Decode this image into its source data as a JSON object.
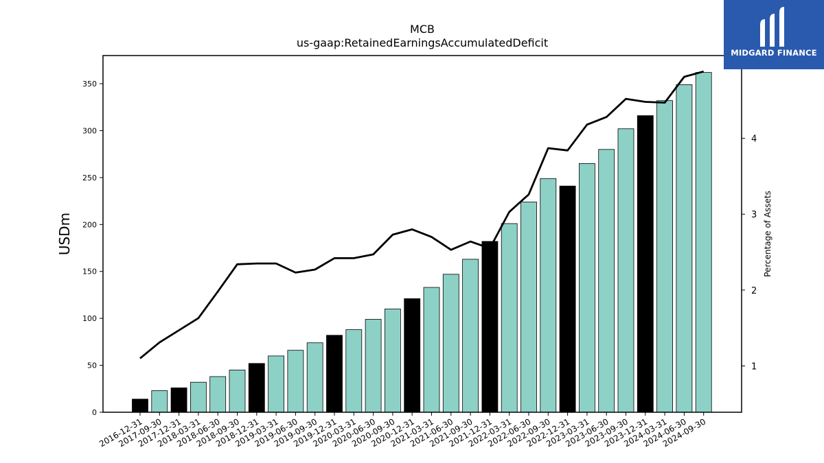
{
  "logo": {
    "text": "MIDGARD FINANCE",
    "icon": "midgard-logo-icon",
    "background": "#2a5aad"
  },
  "chart_data": {
    "type": "bar",
    "title": "MCB",
    "subtitle": "us-gaap:RetainedEarningsAccumulatedDeficit",
    "ylabel": "USDm",
    "ylabel_right": "Percentage of Assets",
    "ylim": [
      0,
      380
    ],
    "ylim_right": [
      0.39,
      5.09
    ],
    "yticks": [
      0,
      50,
      100,
      150,
      200,
      250,
      300,
      350
    ],
    "yticks_right": [
      1,
      2,
      3,
      4
    ],
    "categories": [
      "2016-12-31",
      "2017-09-30",
      "2017-12-31",
      "2018-03-31",
      "2018-06-30",
      "2018-09-30",
      "2018-12-31",
      "2019-03-31",
      "2019-06-30",
      "2019-09-30",
      "2019-12-31",
      "2020-03-31",
      "2020-06-30",
      "2020-09-30",
      "2020-12-31",
      "2021-03-31",
      "2021-06-30",
      "2021-09-30",
      "2021-12-31",
      "2022-03-31",
      "2022-06-30",
      "2022-09-30",
      "2022-12-31",
      "2023-03-31",
      "2023-06-30",
      "2023-09-30",
      "2023-12-31",
      "2024-03-31",
      "2024-06-30",
      "2024-09-30"
    ],
    "values": [
      14,
      23,
      26,
      32,
      38,
      45,
      52,
      60,
      66,
      74,
      82,
      88,
      99,
      110,
      121,
      133,
      147,
      163,
      182,
      201,
      224,
      249,
      241,
      265,
      280,
      302,
      316,
      332,
      349,
      362
    ],
    "year_end_flags": [
      true,
      false,
      true,
      false,
      false,
      false,
      true,
      false,
      false,
      false,
      true,
      false,
      false,
      false,
      true,
      false,
      false,
      false,
      true,
      false,
      false,
      false,
      true,
      false,
      false,
      false,
      true,
      false,
      false,
      false
    ],
    "series": [
      {
        "name": "",
        "axis": "right",
        "type": "line",
        "values": [
          1.1,
          1.31,
          1.47,
          1.63,
          1.98,
          2.34,
          2.35,
          2.35,
          2.23,
          2.27,
          2.42,
          2.42,
          2.47,
          2.73,
          2.8,
          2.7,
          2.53,
          2.64,
          2.55,
          3.03,
          3.26,
          3.87,
          3.84,
          4.18,
          4.28,
          4.52,
          4.48,
          4.47,
          4.81,
          4.88
        ]
      }
    ],
    "colors": {
      "bar": "#8dd1c6",
      "bar_year_end": "#000000",
      "line": "#000000"
    },
    "grid": false,
    "legend": "none"
  }
}
